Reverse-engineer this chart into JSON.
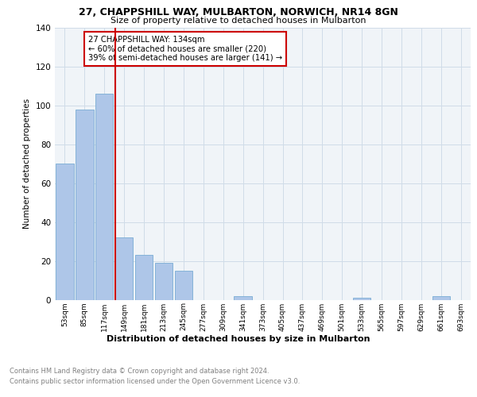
{
  "title1": "27, CHAPPSHILL WAY, MULBARTON, NORWICH, NR14 8GN",
  "title2": "Size of property relative to detached houses in Mulbarton",
  "xlabel": "Distribution of detached houses by size in Mulbarton",
  "ylabel": "Number of detached properties",
  "categories": [
    "53sqm",
    "85sqm",
    "117sqm",
    "149sqm",
    "181sqm",
    "213sqm",
    "245sqm",
    "277sqm",
    "309sqm",
    "341sqm",
    "373sqm",
    "405sqm",
    "437sqm",
    "469sqm",
    "501sqm",
    "533sqm",
    "565sqm",
    "597sqm",
    "629sqm",
    "661sqm",
    "693sqm"
  ],
  "values": [
    70,
    98,
    106,
    32,
    23,
    19,
    15,
    0,
    0,
    2,
    0,
    0,
    0,
    0,
    0,
    1,
    0,
    0,
    0,
    2,
    0
  ],
  "bar_color": "#aec6e8",
  "bar_edge_color": "#7aadd4",
  "ylim": [
    0,
    140
  ],
  "yticks": [
    0,
    20,
    40,
    60,
    80,
    100,
    120,
    140
  ],
  "vline_color": "#cc0000",
  "annotation_text": "27 CHAPPSHILL WAY: 134sqm\n← 60% of detached houses are smaller (220)\n39% of semi-detached houses are larger (141) →",
  "annotation_box_color": "#cc0000",
  "footer1": "Contains HM Land Registry data © Crown copyright and database right 2024.",
  "footer2": "Contains public sector information licensed under the Open Government Licence v3.0.",
  "grid_color": "#d0dce8",
  "bg_color": "#f0f4f8"
}
